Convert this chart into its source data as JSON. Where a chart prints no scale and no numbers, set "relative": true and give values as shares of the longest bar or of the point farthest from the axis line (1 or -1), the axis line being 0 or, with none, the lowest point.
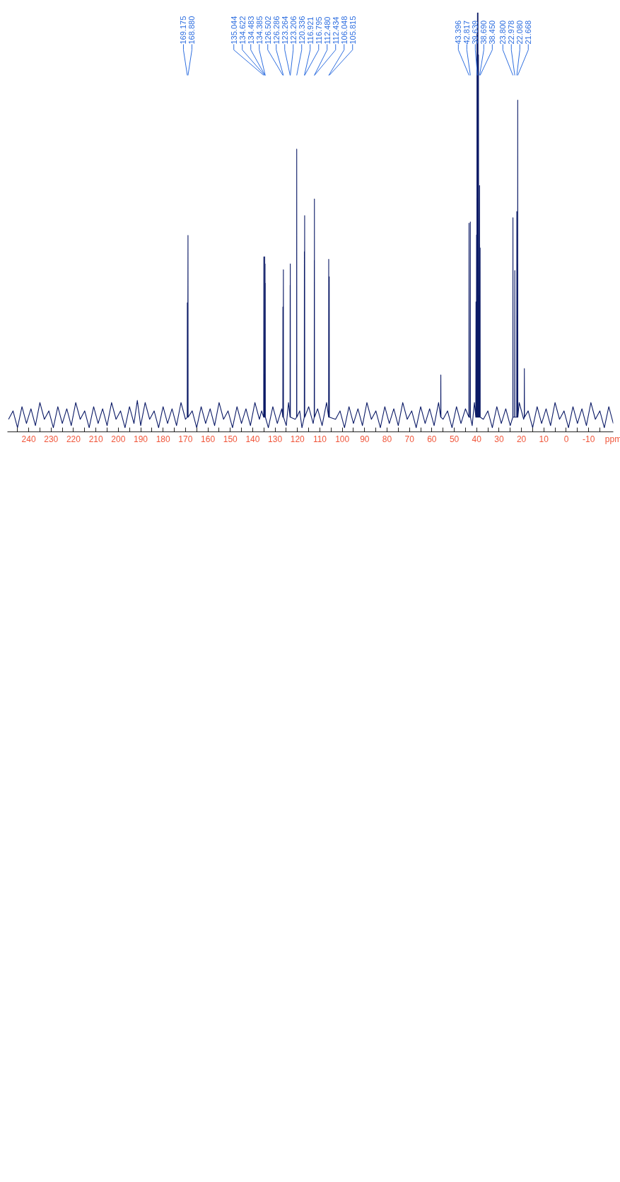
{
  "chart_data": {
    "type": "line",
    "xlabel": "ppm",
    "relative": true,
    "grid": false,
    "marker": "none",
    "line_style": "solid",
    "xlim": [
      249.5,
      -21
    ],
    "xticks": [
      {
        "value": -15,
        "label": null
      },
      -10,
      {
        "value": -5,
        "label": null
      },
      0,
      {
        "value": 5,
        "label": null
      },
      10,
      {
        "value": 15,
        "label": null
      },
      20,
      {
        "value": 25,
        "label": null
      },
      30,
      {
        "value": 35,
        "label": null
      },
      40,
      {
        "value": 45,
        "label": null
      },
      50,
      {
        "value": 55,
        "label": null
      },
      60,
      {
        "value": 65,
        "label": null
      },
      70,
      {
        "value": 75,
        "label": null
      },
      80,
      {
        "value": 85,
        "label": null
      },
      90,
      {
        "value": 95,
        "label": null
      },
      100,
      {
        "value": 105,
        "label": null
      },
      110,
      {
        "value": 115,
        "label": null
      },
      120,
      {
        "value": 125,
        "label": null
      },
      130,
      {
        "value": 135,
        "label": null
      },
      140,
      {
        "value": 145,
        "label": null
      },
      150,
      {
        "value": 155,
        "label": null
      },
      160,
      {
        "value": 165,
        "label": null
      },
      170,
      {
        "value": 175,
        "label": null
      },
      180,
      {
        "value": 185,
        "label": null
      },
      190,
      {
        "value": 195,
        "label": null
      },
      200,
      {
        "value": 205,
        "label": null
      },
      210,
      {
        "value": 215,
        "label": null
      },
      220,
      {
        "value": 225,
        "label": null
      },
      230,
      {
        "value": 235,
        "label": null
      },
      240,
      {
        "value": 245,
        "label": null
      }
    ],
    "series": [
      {
        "color": "#0b1a66",
        "x": [
          -21,
          -19,
          -17,
          -15,
          -13,
          -11,
          -9,
          -7,
          -5,
          -3,
          -1,
          1,
          3,
          5,
          7,
          9,
          11,
          13,
          15,
          17,
          18.64,
          18.7,
          18.76,
          19,
          21,
          21.6,
          21.668,
          21.72,
          22.03,
          22.08,
          22.13,
          22.93,
          22.978,
          23.03,
          23.75,
          23.8,
          23.85,
          25,
          27,
          29,
          31,
          33,
          35,
          37,
          38.4,
          38.45,
          38.5,
          38.64,
          38.69,
          38.74,
          39.0,
          39.2,
          39.3,
          39.4,
          39.5,
          39.639,
          39.7,
          39.85,
          39.95,
          40.05,
          40.15,
          40.3,
          40.4,
          41,
          42,
          42.77,
          42.817,
          42.87,
          43.35,
          43.396,
          43.45,
          45,
          47,
          49,
          51,
          53,
          55,
          55.94,
          56,
          56.06,
          57,
          59,
          61,
          63,
          65,
          67,
          69,
          71,
          73,
          75,
          77,
          79,
          81,
          83,
          85,
          87,
          89,
          91,
          93,
          95,
          97,
          99,
          101,
          103,
          105.76,
          105.815,
          105.86,
          106.0,
          106.048,
          106.1,
          107,
          109,
          111,
          112.39,
          112.434,
          112.457,
          112.48,
          112.53,
          113,
          115,
          116.75,
          116.795,
          116.86,
          116.921,
          116.97,
          118,
          119,
          120.29,
          120.336,
          120.39,
          121,
          123.16,
          123.206,
          123.235,
          123.264,
          123.31,
          124,
          125,
          126.24,
          126.286,
          126.39,
          126.502,
          126.55,
          127,
          129,
          131,
          133,
          134.34,
          134.385,
          134.43,
          134.483,
          134.55,
          134.622,
          134.67,
          135.0,
          135.044,
          135.09,
          136,
          137,
          139,
          141,
          143,
          145,
          147,
          149,
          151,
          153,
          155,
          157,
          159,
          161,
          163,
          165,
          167,
          168.83,
          168.88,
          169.03,
          169.175,
          169.22,
          170,
          172,
          174,
          176,
          178,
          180,
          182,
          184,
          186,
          188,
          190,
          191.5,
          193,
          195,
          197,
          199,
          201,
          203,
          205,
          207,
          209,
          211,
          213,
          215,
          217,
          219,
          221,
          223,
          225,
          227,
          229,
          231,
          233,
          235,
          237,
          239,
          241,
          243,
          245,
          247,
          249
        ],
        "values": [
          0.02,
          0.06,
          0.01,
          0.05,
          0.03,
          0.07,
          0.015,
          0.055,
          0.02,
          0.06,
          0.01,
          0.05,
          0.03,
          0.07,
          0.015,
          0.055,
          0.02,
          0.06,
          0.01,
          0.05,
          0.035,
          0.151,
          0.035,
          0.03,
          0.07,
          0.035,
          0.792,
          0.035,
          0.035,
          0.526,
          0.035,
          0.035,
          0.385,
          0.035,
          0.035,
          0.511,
          0.035,
          0.015,
          0.055,
          0.02,
          0.06,
          0.01,
          0.05,
          0.03,
          0.035,
          0.439,
          0.035,
          0.035,
          0.588,
          0.035,
          0.035,
          0.9,
          0.035,
          1,
          0.035,
          1,
          0.035,
          0.95,
          0.035,
          0.47,
          0.035,
          0.31,
          0.035,
          0.07,
          0.015,
          0.035,
          0.501,
          0.035,
          0.035,
          0.498,
          0.035,
          0.055,
          0.02,
          0.06,
          0.01,
          0.05,
          0.03,
          0.035,
          0.136,
          0.035,
          0.07,
          0.015,
          0.055,
          0.02,
          0.06,
          0.01,
          0.05,
          0.03,
          0.07,
          0.015,
          0.055,
          0.02,
          0.06,
          0.01,
          0.05,
          0.03,
          0.07,
          0.015,
          0.055,
          0.02,
          0.06,
          0.01,
          0.05,
          0.03,
          0.035,
          0.37,
          0.035,
          0.035,
          0.412,
          0.035,
          0.07,
          0.015,
          0.055,
          0.035,
          0.556,
          0.035,
          0.41,
          0.035,
          0.02,
          0.06,
          0.035,
          0.516,
          0.035,
          0.43,
          0.035,
          0.01,
          0.05,
          0.035,
          0.675,
          0.035,
          0.03,
          0.035,
          0.401,
          0.035,
          0.35,
          0.035,
          0.07,
          0.015,
          0.035,
          0.387,
          0.035,
          0.298,
          0.035,
          0.055,
          0.02,
          0.06,
          0.01,
          0.035,
          0.355,
          0.035,
          0.401,
          0.035,
          0.418,
          0.035,
          0.035,
          0.418,
          0.035,
          0.05,
          0.03,
          0.07,
          0.015,
          0.055,
          0.02,
          0.06,
          0.01,
          0.05,
          0.03,
          0.07,
          0.015,
          0.055,
          0.02,
          0.06,
          0.01,
          0.05,
          0.035,
          0.469,
          0.035,
          0.308,
          0.035,
          0.03,
          0.07,
          0.015,
          0.055,
          0.02,
          0.06,
          0.01,
          0.05,
          0.03,
          0.07,
          0.015,
          0.075,
          0.02,
          0.06,
          0.01,
          0.05,
          0.03,
          0.07,
          0.015,
          0.055,
          0.02,
          0.06,
          0.01,
          0.05,
          0.03,
          0.07,
          0.015,
          0.055,
          0.02,
          0.06,
          0.01,
          0.05,
          0.03,
          0.07,
          0.015,
          0.055,
          0.02,
          0.06,
          0.01,
          0.05,
          0.03
        ]
      }
    ],
    "annotations": [
      {
        "text": "21.668",
        "x": 21.668
      },
      {
        "text": "22.080",
        "x": 22.08
      },
      {
        "text": "22.978",
        "x": 22.978
      },
      {
        "text": "23.800",
        "x": 23.8
      },
      {
        "text": "38.450",
        "x": 38.45
      },
      {
        "text": "38.690",
        "x": 38.69
      },
      {
        "text": "39.639",
        "x": 39.639
      },
      {
        "text": "42.817",
        "x": 42.817
      },
      {
        "text": "43.396",
        "x": 43.396
      },
      {
        "text": "105.815",
        "x": 105.815
      },
      {
        "text": "106.048",
        "x": 106.048
      },
      {
        "text": "112.434",
        "x": 112.434
      },
      {
        "text": "112.480",
        "x": 112.48
      },
      {
        "text": "116.795",
        "x": 116.795
      },
      {
        "text": "116.921",
        "x": 116.921
      },
      {
        "text": "120.336",
        "x": 120.336
      },
      {
        "text": "123.206",
        "x": 123.206
      },
      {
        "text": "123.264",
        "x": 123.264
      },
      {
        "text": "126.286",
        "x": 126.286
      },
      {
        "text": "126.502",
        "x": 126.502
      },
      {
        "text": "134.385",
        "x": 134.385
      },
      {
        "text": "134.483",
        "x": 134.483
      },
      {
        "text": "134.622",
        "x": 134.622
      },
      {
        "text": "135.044",
        "x": 135.044
      },
      {
        "text": "168.880",
        "x": 168.88
      },
      {
        "text": "169.175",
        "x": 169.175
      }
    ]
  }
}
